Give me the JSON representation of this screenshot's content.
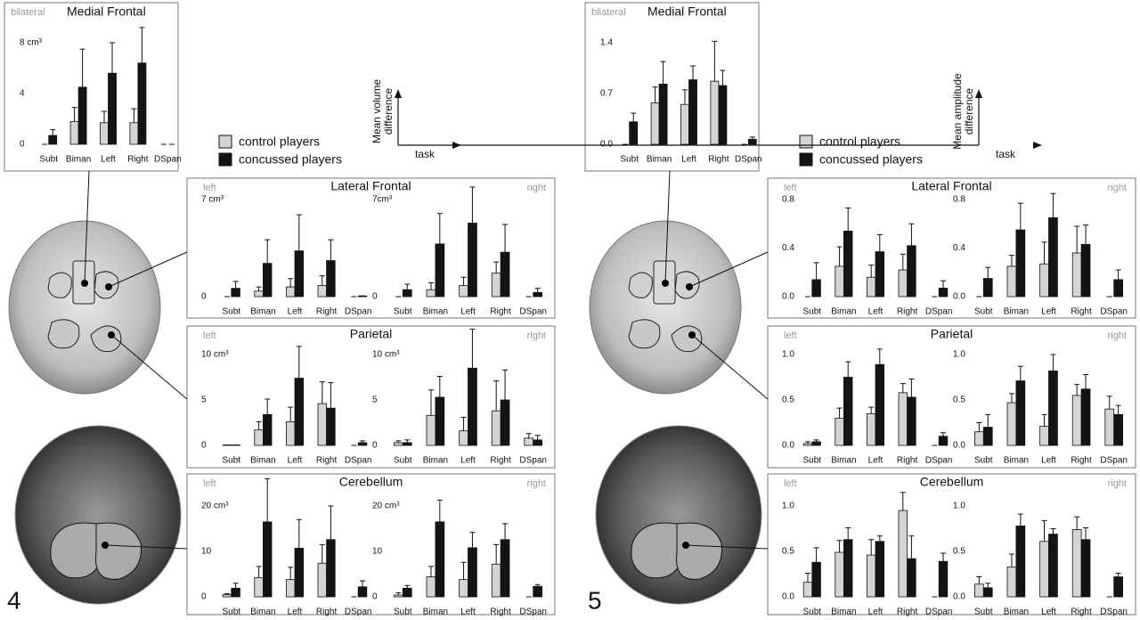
{
  "figures": [
    {
      "number": "4",
      "legend": [
        {
          "name": "control players",
          "color": "#d4d4d4"
        },
        {
          "name": "concussed players",
          "color": "#141414"
        }
      ],
      "axis_key": {
        "y_label": [
          "Mean volume",
          "difference"
        ],
        "x_label": "task"
      }
    },
    {
      "number": "5",
      "legend": [
        {
          "name": "control players",
          "color": "#d4d4d4"
        },
        {
          "name": "concussed players",
          "color": "#141414"
        }
      ],
      "axis_key": {
        "y_label": [
          "Mean amplitude",
          "difference"
        ],
        "x_label": "task"
      }
    }
  ],
  "chart_data": [
    {
      "type": "bar",
      "title": "Medial Frontal",
      "side": "bilateral",
      "categories": [
        "Subt",
        "Biman",
        "Left",
        "Right",
        "DSpan"
      ],
      "ylim": [
        0,
        8
      ],
      "yticks": [
        0,
        4,
        {
          "value": 8,
          "label": "8 cm³"
        }
      ],
      "series": [
        {
          "color": "#d4d4d4",
          "values": [
            0,
            1.8,
            1.7,
            1.7,
            0
          ],
          "errors": [
            0,
            1.1,
            0.9,
            1.1,
            0
          ]
        },
        {
          "color": "#141414",
          "values": [
            0.7,
            4.5,
            5.6,
            6.4,
            0
          ],
          "errors": [
            0.45,
            3,
            2.4,
            2.8,
            0
          ]
        }
      ]
    },
    {
      "type": "bar",
      "title": "Lateral Frontal",
      "side": "left",
      "categories": [
        "Subt",
        "Biman",
        "Left",
        "Right",
        "DSpan"
      ],
      "ylim": [
        0,
        7
      ],
      "yticks": [
        0,
        {
          "value": 7,
          "label": "7 cm³"
        }
      ],
      "series": [
        {
          "color": "#d4d4d4",
          "values": [
            0,
            0.4,
            0.7,
            0.8,
            0
          ],
          "errors": [
            0,
            0.3,
            0.6,
            0.7,
            0
          ]
        },
        {
          "color": "#141414",
          "values": [
            0.6,
            2.4,
            3.3,
            2.6,
            0.05
          ],
          "errors": [
            0.5,
            1.7,
            2.6,
            1.5,
            0
          ]
        }
      ]
    },
    {
      "type": "bar",
      "side": "right",
      "categories": [
        "Subt",
        "Biman",
        "Left",
        "Right",
        "DSpan"
      ],
      "ylim": [
        0,
        7
      ],
      "yticks": [
        0,
        {
          "value": 7,
          "label": "7cm³"
        }
      ],
      "series": [
        {
          "color": "#d4d4d4",
          "values": [
            0,
            0.5,
            0.8,
            1.7,
            0
          ],
          "errors": [
            0,
            0.5,
            0.6,
            0.8,
            0
          ]
        },
        {
          "color": "#141414",
          "values": [
            0.5,
            3.8,
            5.3,
            3.2,
            0.3
          ],
          "errors": [
            0.4,
            2.2,
            2.6,
            2,
            0.3
          ]
        }
      ]
    },
    {
      "type": "bar",
      "title": "Parietal",
      "side": "left",
      "categories": [
        "Subt",
        "Biman",
        "Left",
        "Right",
        "DSpan"
      ],
      "ylim": [
        0,
        10
      ],
      "yticks": [
        0,
        5,
        {
          "value": 10,
          "label": "10 cm³"
        }
      ],
      "series": [
        {
          "color": "#d4d4d4",
          "values": [
            0.05,
            1.7,
            2.6,
            4.6,
            0
          ],
          "errors": [
            0,
            0.9,
            1.6,
            2.4,
            0
          ]
        },
        {
          "color": "#141414",
          "values": [
            0.05,
            3.4,
            7.4,
            4.1,
            0.3
          ],
          "errors": [
            0,
            1.7,
            3.5,
            2.8,
            0.2
          ]
        }
      ]
    },
    {
      "type": "bar",
      "side": "right",
      "categories": [
        "Subt",
        "Biman",
        "Left",
        "Right",
        "DSpan"
      ],
      "ylim": [
        0,
        10
      ],
      "yticks": [
        0,
        5,
        {
          "value": 10,
          "label": "10 cm³"
        }
      ],
      "series": [
        {
          "color": "#d4d4d4",
          "values": [
            0.3,
            3.3,
            1.6,
            3.8,
            0.8
          ],
          "errors": [
            0.2,
            2.8,
            1.5,
            3.3,
            0.5
          ]
        },
        {
          "color": "#141414",
          "values": [
            0.3,
            5.3,
            8.5,
            5,
            0.6
          ],
          "errors": [
            0.3,
            2.3,
            4.3,
            3.3,
            0.5
          ]
        }
      ]
    },
    {
      "type": "bar",
      "title": "Cerebellum",
      "side": "left",
      "categories": [
        "Subt",
        "Biman",
        "Left",
        "Right",
        "DSpan"
      ],
      "ylim": [
        0,
        20
      ],
      "yticks": [
        0,
        10,
        {
          "value": 20,
          "label": "20 cm³"
        }
      ],
      "series": [
        {
          "color": "#d4d4d4",
          "values": [
            0.5,
            4.2,
            3.8,
            7.4,
            0
          ],
          "errors": [
            0.2,
            2.5,
            2.7,
            4.1,
            0
          ]
        },
        {
          "color": "#141414",
          "values": [
            1.9,
            16.5,
            10.7,
            12.6,
            2.2
          ],
          "errors": [
            1.1,
            9.5,
            6.3,
            7.4,
            1.3
          ]
        }
      ]
    },
    {
      "type": "bar",
      "side": "right",
      "categories": [
        "Subt",
        "Biman",
        "Left",
        "Right",
        "DSpan"
      ],
      "ylim": [
        0,
        20
      ],
      "yticks": [
        0,
        10,
        {
          "value": 20,
          "label": "20 cm³"
        }
      ],
      "series": [
        {
          "color": "#d4d4d4",
          "values": [
            0.4,
            4.4,
            3.8,
            7.2,
            0
          ],
          "errors": [
            0.5,
            2.3,
            3.8,
            4.3,
            0
          ]
        },
        {
          "color": "#141414",
          "values": [
            1.9,
            16.5,
            10.8,
            12.6,
            2.3
          ],
          "errors": [
            0.6,
            4.8,
            3.4,
            3.5,
            0.4
          ]
        }
      ]
    },
    {
      "type": "bar",
      "title": "Medial Frontal",
      "side": "bilateral",
      "categories": [
        "Subt",
        "Biman",
        "Left",
        "Right",
        "DSpan"
      ],
      "ylim": [
        0,
        1.4
      ],
      "yticks": [
        {
          "value": 0,
          "label": "0.0"
        },
        0.7,
        1.4
      ],
      "series": [
        {
          "color": "#d4d4d4",
          "values": [
            0,
            0.57,
            0.55,
            0.87,
            0
          ],
          "errors": [
            0,
            0.22,
            0.2,
            0.55,
            0
          ]
        },
        {
          "color": "#141414",
          "values": [
            0.31,
            0.83,
            0.89,
            0.81,
            0.07
          ],
          "errors": [
            0.12,
            0.31,
            0.19,
            0.21,
            0.03
          ]
        }
      ]
    },
    {
      "type": "bar",
      "title": "Lateral Frontal",
      "side": "left",
      "categories": [
        "Subt",
        "Biman",
        "Left",
        "Right",
        "DSpan"
      ],
      "ylim": [
        0,
        0.8
      ],
      "yticks": [
        {
          "value": 0,
          "label": "0.0"
        },
        0.4,
        0.8
      ],
      "series": [
        {
          "color": "#d4d4d4",
          "values": [
            0,
            0.25,
            0.16,
            0.22,
            0
          ],
          "errors": [
            0,
            0.16,
            0.1,
            0.13,
            0
          ]
        },
        {
          "color": "#141414",
          "values": [
            0.14,
            0.54,
            0.37,
            0.42,
            0.07
          ],
          "errors": [
            0.14,
            0.19,
            0.14,
            0.18,
            0.06
          ]
        }
      ]
    },
    {
      "type": "bar",
      "side": "right",
      "categories": [
        "Subt",
        "Biman",
        "Left",
        "Right",
        "DSpan"
      ],
      "ylim": [
        0,
        0.8
      ],
      "yticks": [
        {
          "value": 0,
          "label": "0.0"
        },
        0.4,
        0.8
      ],
      "series": [
        {
          "color": "#d4d4d4",
          "values": [
            0,
            0.25,
            0.27,
            0.36,
            0
          ],
          "errors": [
            0,
            0.09,
            0.18,
            0.22,
            0
          ]
        },
        {
          "color": "#141414",
          "values": [
            0.15,
            0.55,
            0.65,
            0.43,
            0.14
          ],
          "errors": [
            0.09,
            0.22,
            0.2,
            0.16,
            0.08
          ]
        }
      ]
    },
    {
      "type": "bar",
      "title": "Parietal",
      "side": "left",
      "categories": [
        "Subt",
        "Biman",
        "Left",
        "Right",
        "DSpan"
      ],
      "ylim": [
        0,
        1
      ],
      "yticks": [
        {
          "value": 0,
          "label": "0.0"
        },
        0.5,
        {
          "value": 1,
          "label": "1.0"
        }
      ],
      "series": [
        {
          "color": "#d4d4d4",
          "values": [
            0.02,
            0.3,
            0.35,
            0.58,
            0
          ],
          "errors": [
            0.02,
            0.11,
            0.07,
            0.1,
            0
          ]
        },
        {
          "color": "#141414",
          "values": [
            0.04,
            0.75,
            0.89,
            0.53,
            0.1
          ],
          "errors": [
            0.02,
            0.17,
            0.17,
            0.2,
            0.04
          ]
        }
      ]
    },
    {
      "type": "bar",
      "side": "right",
      "categories": [
        "Subt",
        "Biman",
        "Left",
        "Right",
        "DSpan"
      ],
      "ylim": [
        0,
        1
      ],
      "yticks": [
        {
          "value": 0,
          "label": "0.0"
        },
        0.5,
        {
          "value": 1,
          "label": "1.0"
        }
      ],
      "series": [
        {
          "color": "#d4d4d4",
          "values": [
            0.15,
            0.47,
            0.21,
            0.55,
            0.4
          ],
          "errors": [
            0.1,
            0.1,
            0.13,
            0.12,
            0.14
          ]
        },
        {
          "color": "#141414",
          "values": [
            0.2,
            0.71,
            0.82,
            0.62,
            0.34
          ],
          "errors": [
            0.14,
            0.16,
            0.18,
            0.16,
            0.1
          ]
        }
      ]
    },
    {
      "type": "bar",
      "title": "Cerebellum",
      "side": "left",
      "categories": [
        "Subt",
        "Biman",
        "Left",
        "Right",
        "DSpan"
      ],
      "ylim": [
        0,
        1
      ],
      "yticks": [
        {
          "value": 0,
          "label": "0.0"
        },
        0.5,
        {
          "value": 1,
          "label": "1.0"
        }
      ],
      "series": [
        {
          "color": "#d4d4d4",
          "values": [
            0.16,
            0.49,
            0.46,
            0.95,
            0
          ],
          "errors": [
            0.1,
            0.13,
            0.17,
            0.2,
            0
          ]
        },
        {
          "color": "#141414",
          "values": [
            0.38,
            0.63,
            0.61,
            0.42,
            0.39
          ],
          "errors": [
            0.16,
            0.13,
            0.06,
            0.25,
            0.09
          ]
        }
      ]
    },
    {
      "type": "bar",
      "side": "right",
      "categories": [
        "Subt",
        "Biman",
        "Left",
        "Right",
        "DSpan"
      ],
      "ylim": [
        0,
        1
      ],
      "yticks": [
        {
          "value": 0,
          "label": "0.0"
        },
        0.5,
        {
          "value": 1,
          "label": "1.0"
        }
      ],
      "series": [
        {
          "color": "#d4d4d4",
          "values": [
            0.14,
            0.33,
            0.61,
            0.74,
            0
          ],
          "errors": [
            0.08,
            0.14,
            0.23,
            0.14,
            0
          ]
        },
        {
          "color": "#141414",
          "values": [
            0.1,
            0.78,
            0.69,
            0.63,
            0.22
          ],
          "errors": [
            0.05,
            0.13,
            0.06,
            0.13,
            0.04
          ]
        }
      ]
    }
  ]
}
